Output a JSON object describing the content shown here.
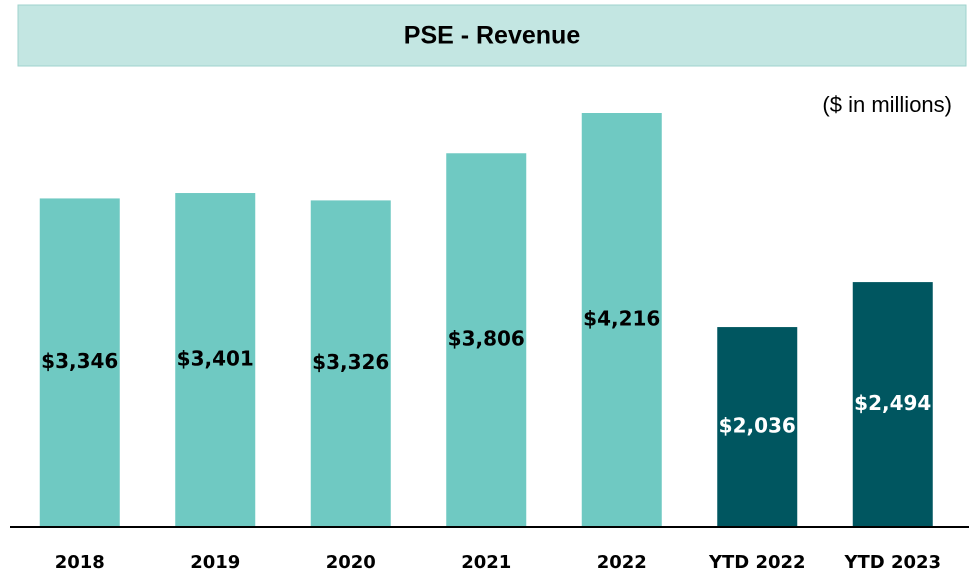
{
  "chart_data": {
    "type": "bar",
    "title": "PSE - Revenue",
    "subtitle": "($ in millions)",
    "categories": [
      "2018",
      "2019",
      "2020",
      "2021",
      "2022",
      "YTD 2022",
      "YTD 2023"
    ],
    "values": [
      3346,
      3401,
      3326,
      3806,
      4216,
      2036,
      2494
    ],
    "value_labels": [
      "$3,346",
      "$3,401",
      "$3,326",
      "$3,806",
      "$4,216",
      "$2,036",
      "$2,494"
    ],
    "colors": [
      "#6fc9c2",
      "#6fc9c2",
      "#6fc9c2",
      "#6fc9c2",
      "#6fc9c2",
      "#005660",
      "#005660"
    ]
  }
}
